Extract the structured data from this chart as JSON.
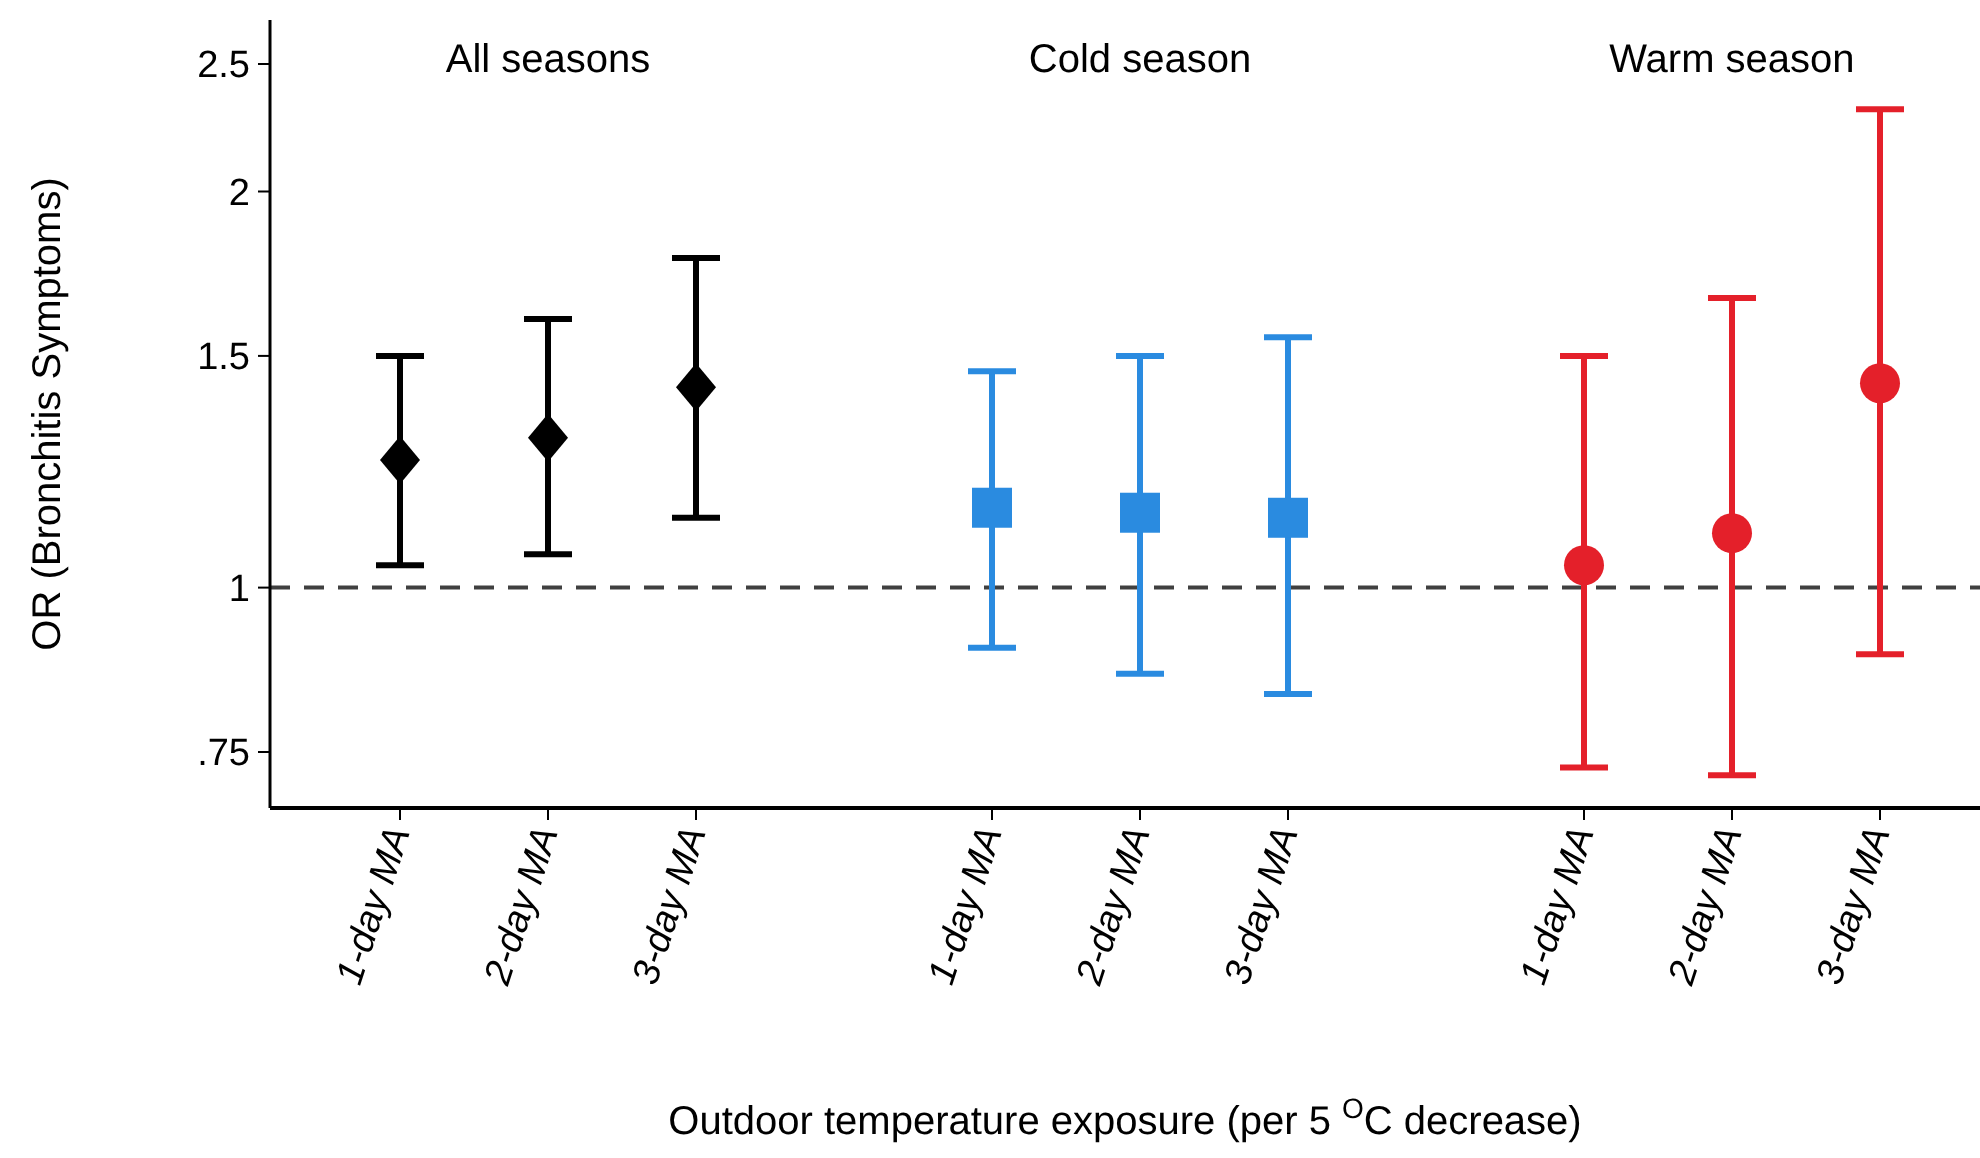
{
  "chart_data": {
    "type": "scatter",
    "ylabel": "OR (Bronchitis Symptoms)",
    "xlabel": "Outdoor temperature exposure (per 5 $^{O}$C decrease)",
    "categories": [
      "1-day MA",
      "2-day MA",
      "3-day MA",
      null,
      "1-day MA",
      "2-day MA",
      "3-day MA",
      null,
      "1-day MA",
      "2-day MA",
      "3-day MA"
    ],
    "log": "y",
    "ylim": [
      0.68,
      2.7
    ],
    "yticks": [
      {
        "value": 0.75,
        "label": ".75"
      },
      1,
      1.5,
      2,
      2.5
    ],
    "grid": false,
    "ref_lines": [
      {
        "axis": "y",
        "value": 1,
        "line_style": "dashed",
        "color": "#404040"
      }
    ],
    "annotations": [
      "All seasons",
      "Cold season",
      "Warm season"
    ],
    "series": [
      {
        "color": "#000000",
        "marker": "diamond",
        "values": [
          1.25,
          1.3,
          1.42,
          null,
          null,
          null,
          null,
          null,
          null,
          null,
          null
        ],
        "errors": [
          [
            1.04,
            1.5
          ],
          [
            1.06,
            1.6
          ],
          [
            1.13,
            1.78
          ],
          null,
          null,
          null,
          null,
          null,
          null,
          null,
          null
        ]
      },
      {
        "color": "#2a8be0",
        "marker": "square",
        "values": [
          null,
          null,
          null,
          null,
          1.15,
          1.14,
          1.13,
          null,
          null,
          null,
          null
        ],
        "errors": [
          null,
          null,
          null,
          null,
          [
            0.9,
            1.46
          ],
          [
            0.86,
            1.5
          ],
          [
            0.83,
            1.55
          ],
          null,
          null,
          null,
          null
        ]
      },
      {
        "color": "#e4202a",
        "marker": "circle",
        "values": [
          null,
          null,
          null,
          null,
          null,
          null,
          null,
          null,
          1.04,
          1.1,
          1.43
        ],
        "errors": [
          null,
          null,
          null,
          null,
          null,
          null,
          null,
          null,
          [
            0.73,
            1.5
          ],
          [
            0.72,
            1.66
          ],
          [
            0.89,
            2.31
          ]
        ]
      }
    ]
  }
}
